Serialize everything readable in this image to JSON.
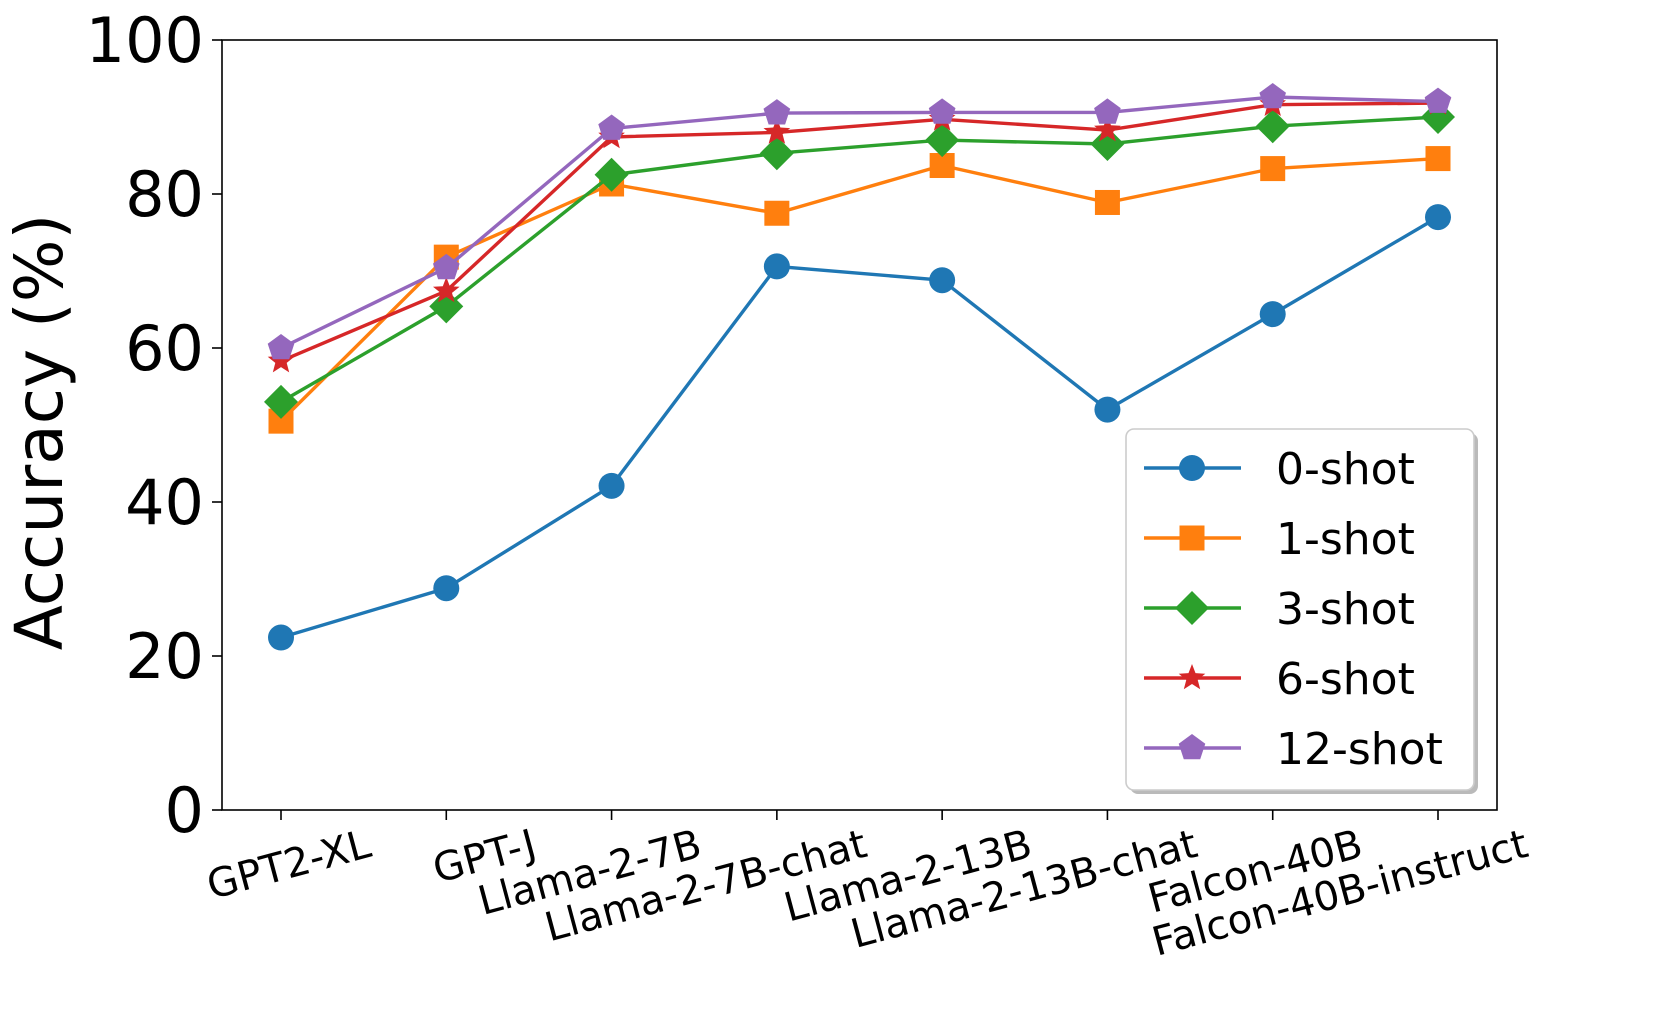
{
  "chart_data": {
    "type": "line",
    "title": "",
    "xlabel": "",
    "ylabel": "Accuracy (%)",
    "ylim": [
      0,
      100
    ],
    "yticks": [
      0,
      20,
      40,
      60,
      80,
      100
    ],
    "grid": false,
    "legend_position": "lower-right",
    "categories": [
      "GPT2-XL",
      "GPT-J",
      "Llama-2-7B",
      "Llama-2-7B-chat",
      "Llama-2-13B",
      "Llama-2-13B-chat",
      "Falcon-40B",
      "Falcon-40B-instruct"
    ],
    "series": [
      {
        "name": "0-shot",
        "color": "#1f77b4",
        "marker": "circle",
        "values": [
          22.4,
          28.8,
          42.1,
          70.6,
          68.8,
          52.0,
          64.4,
          77.0
        ]
      },
      {
        "name": "1-shot",
        "color": "#ff7f0e",
        "marker": "square",
        "values": [
          50.5,
          71.8,
          81.3,
          77.5,
          83.7,
          78.9,
          83.3,
          84.6
        ]
      },
      {
        "name": "3-shot",
        "color": "#2ca02c",
        "marker": "diamond",
        "values": [
          53.0,
          65.4,
          82.5,
          85.3,
          87.0,
          86.5,
          88.8,
          90.0
        ]
      },
      {
        "name": "6-shot",
        "color": "#d62728",
        "marker": "star",
        "values": [
          58.3,
          67.4,
          87.4,
          88.0,
          89.7,
          88.3,
          91.6,
          91.8
        ]
      },
      {
        "name": "12-shot",
        "color": "#9467bd",
        "marker": "pentagon",
        "values": [
          60.0,
          70.4,
          88.5,
          90.5,
          90.6,
          90.6,
          92.6,
          92.0
        ]
      }
    ]
  }
}
